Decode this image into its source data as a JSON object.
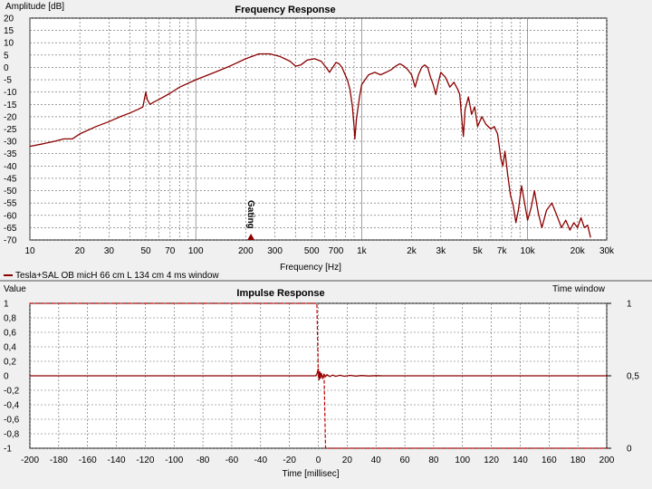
{
  "chart_data": [
    {
      "type": "line",
      "title": "Frequency Response",
      "ylabel": "Amplitude [dB]",
      "xlabel": "Frequency [Hz]",
      "xscale": "log",
      "xlim": [
        10,
        30000
      ],
      "ylim": [
        -70,
        20
      ],
      "grid": true,
      "x_tick_labels": [
        {
          "v": 10,
          "t": "10"
        },
        {
          "v": 20,
          "t": "20"
        },
        {
          "v": 30,
          "t": "30"
        },
        {
          "v": 50,
          "t": "50"
        },
        {
          "v": 70,
          "t": "70"
        },
        {
          "v": 100,
          "t": "100"
        },
        {
          "v": 200,
          "t": "200"
        },
        {
          "v": 300,
          "t": "300"
        },
        {
          "v": 500,
          "t": "500"
        },
        {
          "v": 700,
          "t": "700"
        },
        {
          "v": 1000,
          "t": "1k"
        },
        {
          "v": 2000,
          "t": "2k"
        },
        {
          "v": 3000,
          "t": "3k"
        },
        {
          "v": 5000,
          "t": "5k"
        },
        {
          "v": 7000,
          "t": "7k"
        },
        {
          "v": 10000,
          "t": "10k"
        },
        {
          "v": 20000,
          "t": "20k"
        },
        {
          "v": 30000,
          "t": "30k"
        }
      ],
      "y_ticks": [
        20,
        15,
        10,
        5,
        0,
        -5,
        -10,
        -15,
        -20,
        -25,
        -30,
        -35,
        -40,
        -45,
        -50,
        -55,
        -60,
        -65,
        -70
      ],
      "annotation": {
        "text": "Gating",
        "x": 215,
        "y": -70
      },
      "legend": {
        "placement": "bottom-left",
        "label": "Tesla+SAL OB micH 66 cm L 134 cm 4 ms window"
      },
      "series": [
        {
          "name": "Tesla+SAL OB micH 66 cm L 134 cm 4 ms window",
          "color": "#8b0000",
          "points": [
            [
              10,
              -32
            ],
            [
              12,
              -31
            ],
            [
              14,
              -30
            ],
            [
              16,
              -29
            ],
            [
              18,
              -29
            ],
            [
              20,
              -27
            ],
            [
              25,
              -24
            ],
            [
              30,
              -22
            ],
            [
              35,
              -20
            ],
            [
              40,
              -18.5
            ],
            [
              45,
              -17
            ],
            [
              48,
              -16
            ],
            [
              49,
              -13
            ],
            [
              50,
              -10
            ],
            [
              51,
              -13
            ],
            [
              53,
              -15
            ],
            [
              56,
              -14
            ],
            [
              60,
              -13
            ],
            [
              70,
              -10.5
            ],
            [
              80,
              -8
            ],
            [
              100,
              -5
            ],
            [
              130,
              -2
            ],
            [
              160,
              0.5
            ],
            [
              200,
              3.5
            ],
            [
              240,
              5.5
            ],
            [
              280,
              5.5
            ],
            [
              320,
              4.5
            ],
            [
              370,
              2.5
            ],
            [
              400,
              0.5
            ],
            [
              430,
              1
            ],
            [
              470,
              3
            ],
            [
              520,
              3.5
            ],
            [
              570,
              2.5
            ],
            [
              610,
              0
            ],
            [
              640,
              -2
            ],
            [
              670,
              0
            ],
            [
              700,
              2
            ],
            [
              730,
              1.5
            ],
            [
              760,
              0
            ],
            [
              790,
              -2.5
            ],
            [
              820,
              -5
            ],
            [
              850,
              -9
            ],
            [
              880,
              -16
            ],
            [
              900,
              -24
            ],
            [
              910,
              -29
            ],
            [
              930,
              -21
            ],
            [
              970,
              -12
            ],
            [
              1000,
              -7
            ],
            [
              1100,
              -3
            ],
            [
              1200,
              -2
            ],
            [
              1300,
              -3
            ],
            [
              1400,
              -2
            ],
            [
              1500,
              -1
            ],
            [
              1600,
              0.5
            ],
            [
              1700,
              1.5
            ],
            [
              1800,
              0.5
            ],
            [
              1900,
              -1
            ],
            [
              2000,
              -3
            ],
            [
              2100,
              -8
            ],
            [
              2200,
              -3
            ],
            [
              2300,
              0
            ],
            [
              2400,
              1
            ],
            [
              2500,
              0
            ],
            [
              2600,
              -4
            ],
            [
              2700,
              -7
            ],
            [
              2800,
              -11
            ],
            [
              2900,
              -6
            ],
            [
              3000,
              -2
            ],
            [
              3200,
              -4
            ],
            [
              3400,
              -8
            ],
            [
              3600,
              -6
            ],
            [
              3800,
              -9
            ],
            [
              3900,
              -11
            ],
            [
              4000,
              -20
            ],
            [
              4100,
              -28
            ],
            [
              4200,
              -17
            ],
            [
              4400,
              -12
            ],
            [
              4600,
              -19
            ],
            [
              4800,
              -16
            ],
            [
              5000,
              -24
            ],
            [
              5300,
              -20
            ],
            [
              5600,
              -23
            ],
            [
              6000,
              -25
            ],
            [
              6300,
              -24
            ],
            [
              6600,
              -27
            ],
            [
              6900,
              -37
            ],
            [
              7100,
              -40
            ],
            [
              7300,
              -34
            ],
            [
              7600,
              -44
            ],
            [
              7900,
              -52
            ],
            [
              8200,
              -56
            ],
            [
              8500,
              -63
            ],
            [
              8800,
              -58
            ],
            [
              9200,
              -48
            ],
            [
              9600,
              -55
            ],
            [
              10000,
              -62
            ],
            [
              10500,
              -57
            ],
            [
              11000,
              -50
            ],
            [
              11600,
              -59
            ],
            [
              12200,
              -65
            ],
            [
              13000,
              -58
            ],
            [
              14000,
              -55
            ],
            [
              15000,
              -60
            ],
            [
              16000,
              -65
            ],
            [
              17000,
              -62
            ],
            [
              18000,
              -66
            ],
            [
              19000,
              -63
            ],
            [
              20000,
              -65
            ],
            [
              21000,
              -61
            ],
            [
              22000,
              -65
            ],
            [
              23000,
              -64
            ],
            [
              24000,
              -69
            ]
          ]
        }
      ]
    },
    {
      "type": "line",
      "title": "Impulse Response",
      "ylabel": "Value",
      "y2label": "Time window",
      "xlabel": "Time [millisec]",
      "xlim": [
        -200,
        200
      ],
      "ylim": [
        -1,
        1
      ],
      "y2lim": [
        0,
        1
      ],
      "grid": true,
      "x_ticks": [
        -200,
        -180,
        -160,
        -140,
        -120,
        -100,
        -80,
        -60,
        -40,
        -20,
        0,
        20,
        40,
        60,
        80,
        100,
        120,
        140,
        160,
        180,
        200
      ],
      "y_ticks": [
        {
          "v": 1,
          "t": "1"
        },
        {
          "v": 0.8,
          "t": "0,8"
        },
        {
          "v": 0.6,
          "t": "0,6"
        },
        {
          "v": 0.4,
          "t": "0,4"
        },
        {
          "v": 0.2,
          "t": "0,2"
        },
        {
          "v": 0,
          "t": "0"
        },
        {
          "v": -0.2,
          "t": "-0,2"
        },
        {
          "v": -0.4,
          "t": "-0,4"
        },
        {
          "v": -0.6,
          "t": "-0,6"
        },
        {
          "v": -0.8,
          "t": "-0,8"
        },
        {
          "v": -1,
          "t": "-1"
        }
      ],
      "y2_ticks": [
        {
          "v": 1,
          "t": "1"
        },
        {
          "v": 0.5,
          "t": "0,5"
        },
        {
          "v": 0,
          "t": "0"
        }
      ],
      "series": [
        {
          "name": "impulse",
          "color": "#8b0000",
          "points": [
            [
              -200,
              0
            ],
            [
              -2,
              0
            ],
            [
              -1,
              0.02
            ],
            [
              0,
              0.1
            ],
            [
              0.5,
              -0.06
            ],
            [
              1,
              0.06
            ],
            [
              1.5,
              -0.04
            ],
            [
              2,
              0.04
            ],
            [
              3,
              -0.03
            ],
            [
              4,
              0.02
            ],
            [
              5,
              -0.01
            ],
            [
              6,
              0.015
            ],
            [
              8,
              -0.01
            ],
            [
              10,
              0.01
            ],
            [
              12,
              -0.008
            ],
            [
              15,
              0.008
            ],
            [
              18,
              -0.006
            ],
            [
              22,
              0.006
            ],
            [
              26,
              -0.004
            ],
            [
              30,
              0.004
            ],
            [
              35,
              -0.003
            ],
            [
              40,
              0.002
            ],
            [
              45,
              0
            ],
            [
              200,
              0
            ]
          ]
        },
        {
          "name": "time window",
          "color": "#c00000",
          "axis": "y2",
          "points": [
            [
              -200,
              1
            ],
            [
              -1,
              1
            ],
            [
              0,
              0.5
            ],
            [
              4,
              0.5
            ],
            [
              5,
              0
            ],
            [
              200,
              0
            ]
          ]
        }
      ]
    }
  ]
}
